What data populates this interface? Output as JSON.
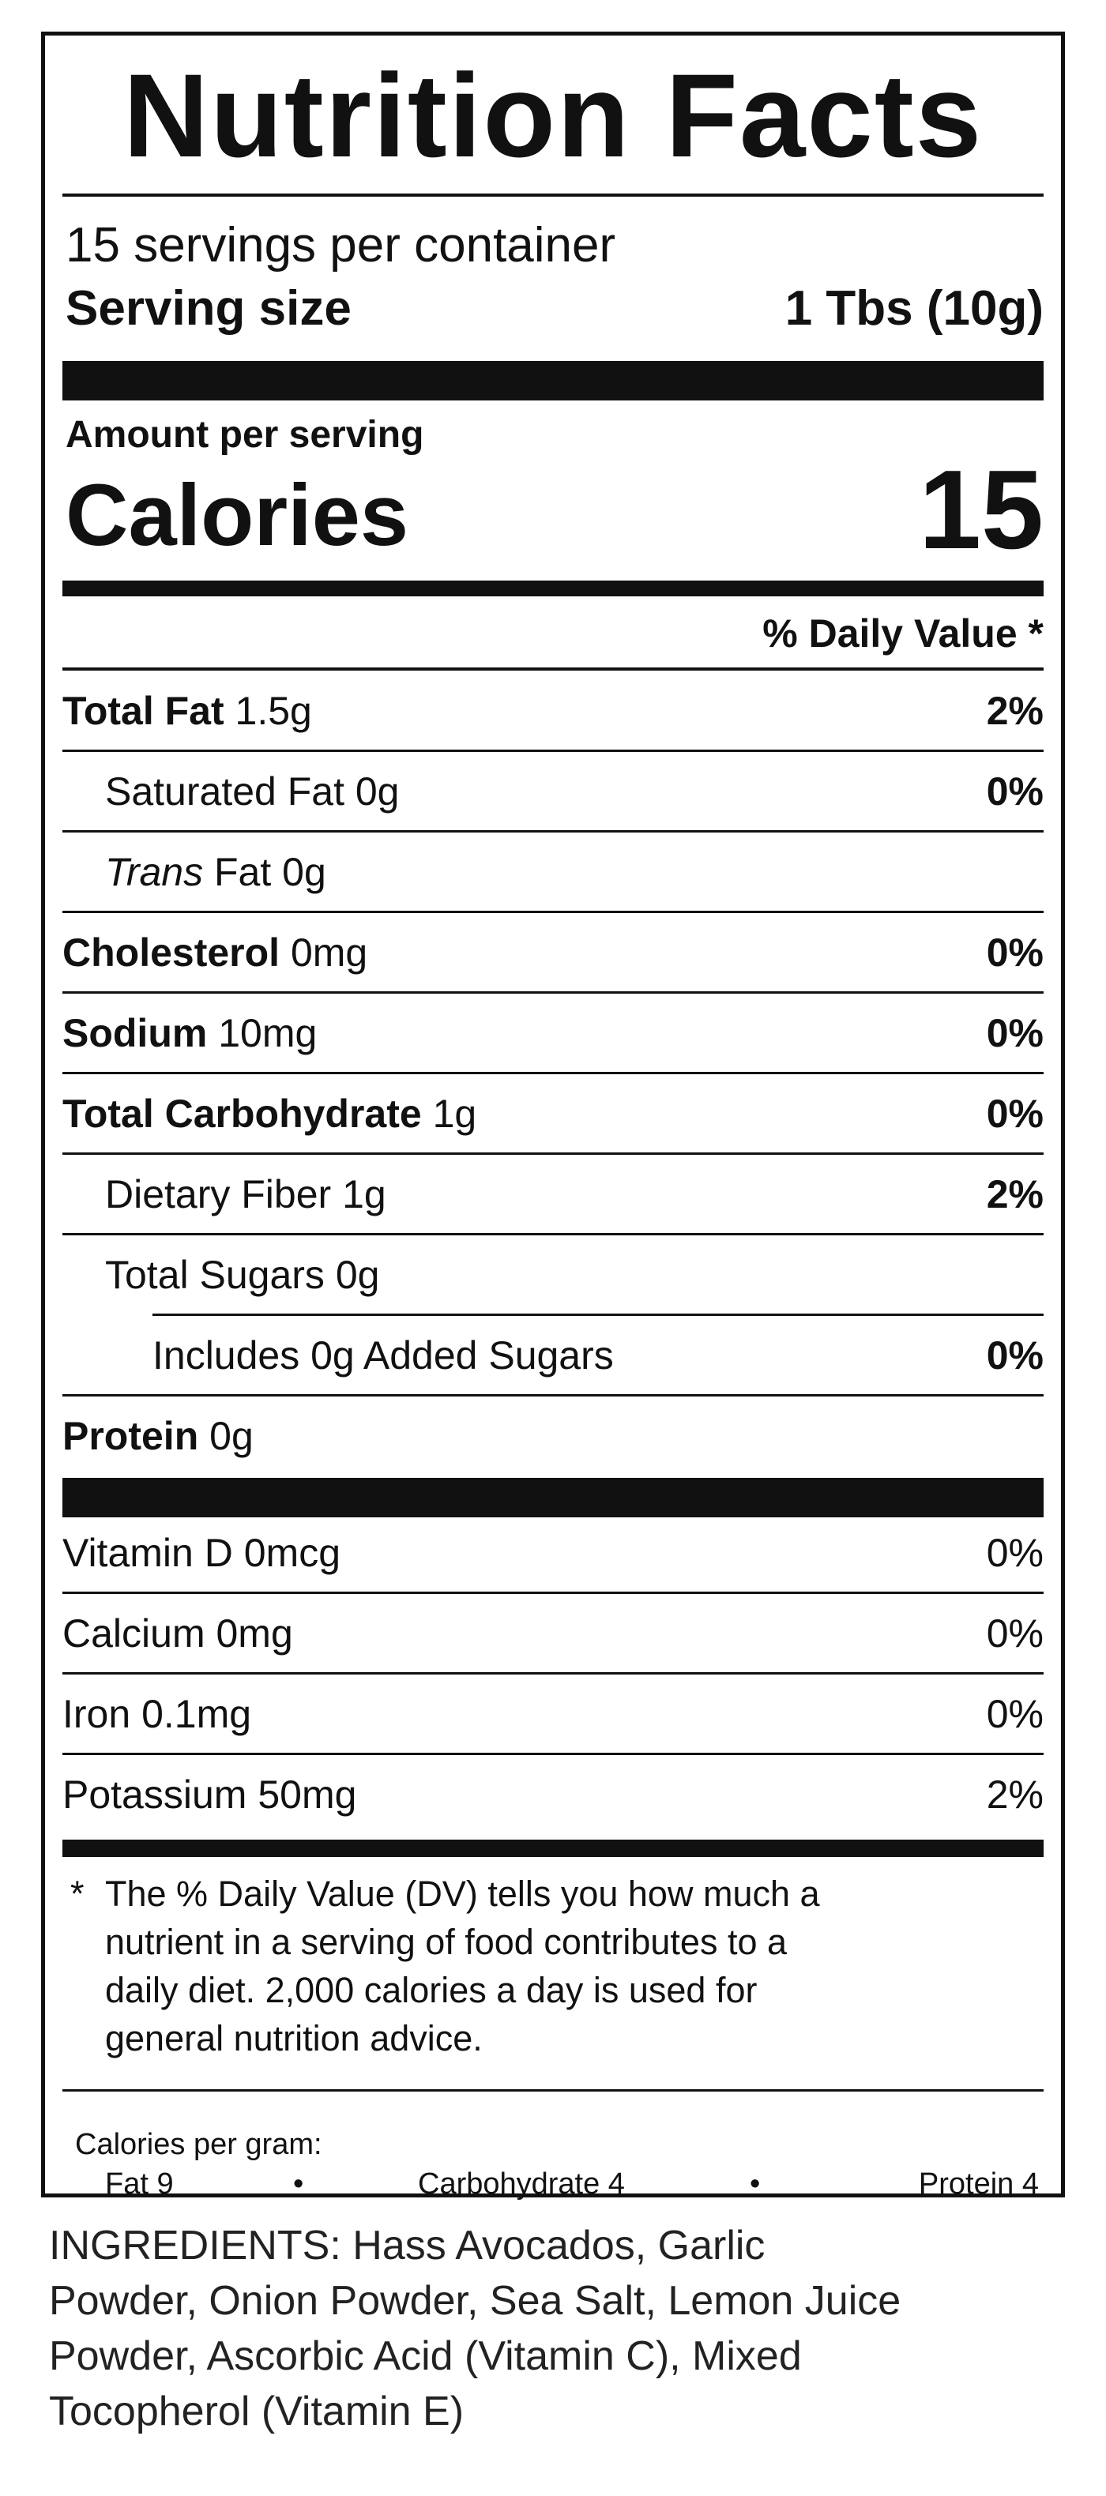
{
  "label": {
    "title": "Nutrition Facts",
    "servings_per_container": "15 servings per container",
    "serving_size_label": "Serving size",
    "serving_size_value": "1 Tbs (10g)",
    "amount_per_serving": "Amount per serving",
    "calories_label": "Calories",
    "calories_value": "15",
    "daily_value_header": "% Daily Value *",
    "nutrients": [
      {
        "name": "Total Fat",
        "amount": "1.5g",
        "dv": "2%"
      },
      {
        "name": "Saturated Fat",
        "amount": "0g",
        "dv": "0%"
      },
      {
        "name_italic": "Trans",
        "name": "Fat",
        "amount": "0g",
        "dv": ""
      },
      {
        "name": "Cholesterol",
        "amount": "0mg",
        "dv": "0%"
      },
      {
        "name": "Sodium",
        "amount": "10mg",
        "dv": "0%"
      },
      {
        "name": "Total Carbohydrate",
        "amount": "1g",
        "dv": "0%"
      },
      {
        "name": "Dietary Fiber",
        "amount": "1g",
        "dv": "2%"
      },
      {
        "name": "Total Sugars",
        "amount": "0g",
        "dv": ""
      },
      {
        "name": "Includes 0g Added Sugars",
        "amount": "",
        "dv": "0%"
      },
      {
        "name": "Protein",
        "amount": "0g",
        "dv": ""
      }
    ],
    "vitamins": [
      {
        "name": "Vitamin D",
        "amount": "0mcg",
        "dv": "0%"
      },
      {
        "name": "Calcium",
        "amount": "0mg",
        "dv": "0%"
      },
      {
        "name": "Iron",
        "amount": "0.1mg",
        "dv": "0%"
      },
      {
        "name": "Potassium",
        "amount": "50mg",
        "dv": "2%"
      }
    ],
    "footnote_star": "*",
    "footnote_lines": [
      "The % Daily Value (DV) tells you how much a",
      "nutrient in a serving of food contributes to a",
      "daily diet. 2,000 calories a day is used for",
      "general nutrition advice."
    ],
    "calories_per_gram_label": "Calories per gram:",
    "calories_per_gram": {
      "fat": "Fat 9",
      "carbohydrate": "Carbohydrate 4",
      "protein": "Protein 4",
      "separator": "•"
    }
  },
  "ingredients": {
    "lines": [
      "INGREDIENTS: Hass Avocados, Garlic",
      "Powder, Onion Powder, Sea Salt, Lemon Juice",
      "Powder, Ascorbic Acid (Vitamin C), Mixed",
      "Tocopherol (Vitamin E)"
    ]
  }
}
